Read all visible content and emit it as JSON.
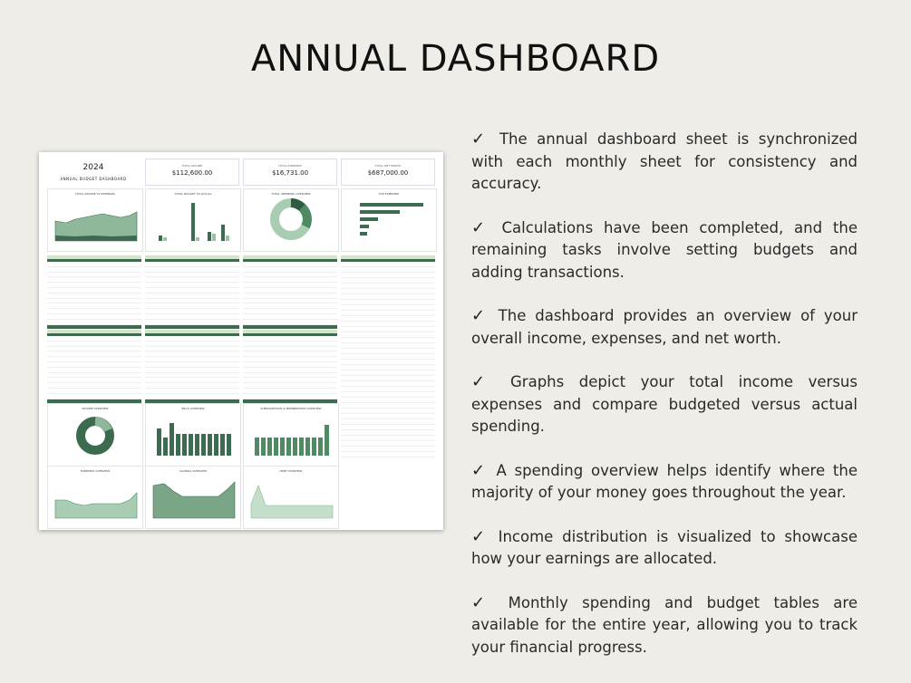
{
  "title": "ANNUAL DASHBOARD",
  "sheet": {
    "year": "2024",
    "subtitle": "ANNUAL BUDGET DASHBOARD",
    "kpis": [
      {
        "label": "TOTAL INCOME",
        "value": "$112,600.00"
      },
      {
        "label": "TOTAL EXPENSES",
        "value": "$16,731.00"
      },
      {
        "label": "TOTAL NET WORTH",
        "value": "$687,000.00"
      }
    ],
    "charts": [
      "TOTAL INCOME VS EXPENSES",
      "TOTAL BUDGET VS ACTUAL",
      "TOTAL SPENDING OVERVIEW",
      "TOP EXPENSES",
      "INCOME OVERVIEW",
      "BILLS OVERVIEW",
      "SUBSCRIPTIONS & MEMBERSHIPS OVERVIEW",
      "EXPENSES OVERVIEW",
      "SAVINGS OVERVIEW",
      "DEBT OVERVIEW"
    ]
  },
  "bullets": [
    {
      "check": "✓",
      "text": "The annual dashboard sheet is synchronized with each monthly sheet for consistency and accuracy."
    },
    {
      "check": "✓",
      "text": "Calculations have been completed, and the remaining tasks involve setting budgets and adding transactions."
    },
    {
      "check": "✓",
      "text": "The dashboard provides an overview of your overall income, expenses, and net worth."
    },
    {
      "check": "✓",
      "text": "Graphs depict your total income versus expenses and compare budgeted versus actual spending."
    },
    {
      "check": "✓",
      "text": "A spending overview helps identify where the majority of your money goes throughout the year."
    },
    {
      "check": "✓",
      "text": "Income distribution is visualized to showcase how your earnings are allocated."
    },
    {
      "check": "✓",
      "text": "Monthly spending and budget tables are available for the entire year, allowing you to track your financial progress."
    }
  ]
}
